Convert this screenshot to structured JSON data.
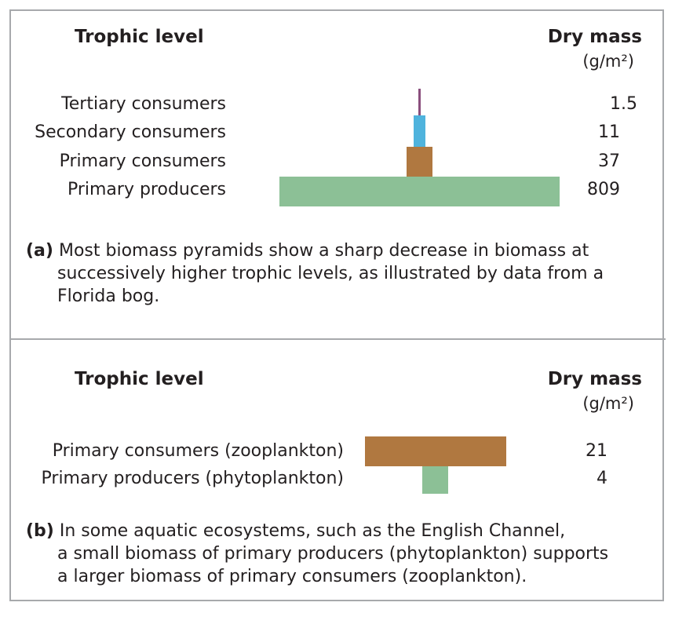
{
  "panel_a": {
    "header_left": "Trophic level",
    "header_right": "Dry mass",
    "unit": "(g/m²)",
    "rows": [
      {
        "label": "Tertiary consumers",
        "value": "1.5",
        "color": "#8a4f7d"
      },
      {
        "label": "Secondary consumers",
        "value": "11",
        "color": "#4fb3dd"
      },
      {
        "label": "Primary consumers",
        "value": "37",
        "color": "#b07840"
      },
      {
        "label": "Primary producers",
        "value": "809",
        "color": "#8cc096"
      }
    ],
    "caption_tag": "(a)",
    "caption_lines": [
      "Most biomass pyramids show a sharp decrease in biomass at",
      "successively higher trophic levels, as illustrated by data from a",
      "Florida bog."
    ]
  },
  "panel_b": {
    "header_left": "Trophic level",
    "header_right": "Dry mass",
    "unit": "(g/m²)",
    "rows": [
      {
        "label": "Primary consumers (zooplankton)",
        "value": "21",
        "color": "#b07840"
      },
      {
        "label": "Primary producers (phytoplankton)",
        "value": "4",
        "color": "#8cc096"
      }
    ],
    "caption_tag": "(b)",
    "caption_lines": [
      "In some aquatic ecosystems, such as the English Channel,",
      "a small biomass of primary producers (phytoplankton) supports",
      "a larger biomass of primary consumers (zooplankton)."
    ]
  }
}
